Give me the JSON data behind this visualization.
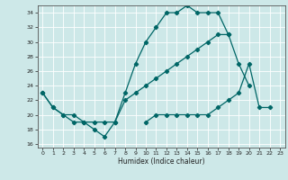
{
  "xlabel": "Humidex (Indice chaleur)",
  "bg_color": "#cde8e8",
  "line_color": "#006666",
  "grid_color": "#ffffff",
  "xlim": [
    -0.5,
    23.5
  ],
  "ylim": [
    15.5,
    35.0
  ],
  "xticks": [
    0,
    1,
    2,
    3,
    4,
    5,
    6,
    7,
    8,
    9,
    10,
    11,
    12,
    13,
    14,
    15,
    16,
    17,
    18,
    19,
    20,
    21,
    22,
    23
  ],
  "yticks": [
    16,
    18,
    20,
    22,
    24,
    26,
    28,
    30,
    32,
    34
  ],
  "line1_x": [
    0,
    1,
    2,
    3,
    4,
    5,
    6,
    7,
    8,
    9,
    10,
    11,
    12,
    13,
    14,
    15,
    16,
    17,
    18
  ],
  "line1_y": [
    23,
    21,
    20,
    19,
    19,
    18,
    17,
    19,
    23,
    27,
    30,
    32,
    34,
    34,
    35,
    34,
    34,
    34,
    31
  ],
  "line2_x": [
    0,
    1,
    2,
    3,
    4,
    5,
    6,
    7,
    8,
    9,
    10,
    11,
    12,
    13,
    14,
    15,
    16,
    17,
    18,
    19,
    20
  ],
  "line2_y": [
    23,
    21,
    20,
    20,
    19,
    19,
    19,
    19,
    22,
    23,
    24,
    25,
    26,
    27,
    28,
    29,
    30,
    31,
    31,
    27,
    24
  ],
  "line3_x": [
    10,
    11,
    12,
    13,
    14,
    15,
    16,
    17,
    18,
    19,
    20,
    21,
    22
  ],
  "line3_y": [
    19,
    20,
    20,
    20,
    20,
    20,
    20,
    21,
    22,
    23,
    27,
    21,
    21
  ]
}
